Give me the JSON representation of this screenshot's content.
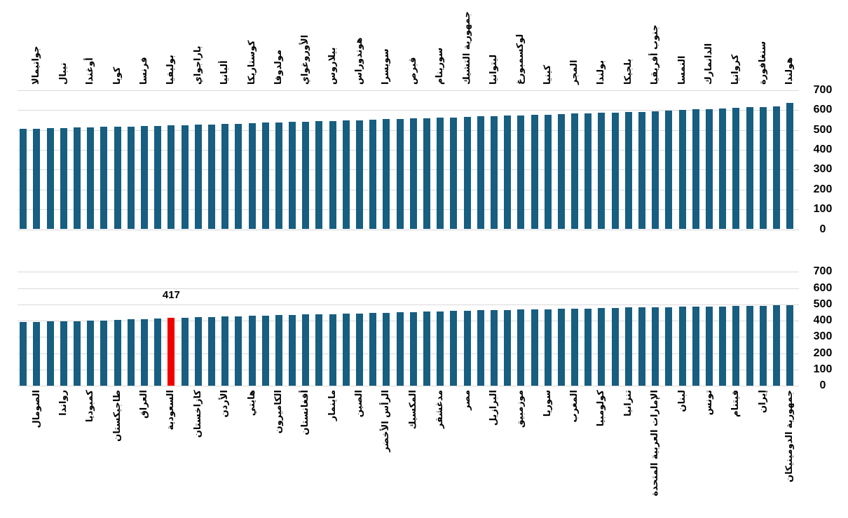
{
  "colors": {
    "bar": "#175E80",
    "highlight_bar": "#F20000",
    "gridline": "#D9D9D9",
    "text": "#000000"
  },
  "chart_data": [
    {
      "type": "bar",
      "panel": "top",
      "title": "",
      "xlabel": "",
      "ylabel": "",
      "ylim": [
        0,
        700
      ],
      "y_ticks": [
        0,
        100,
        200,
        300,
        400,
        500,
        600,
        700
      ],
      "y_axis_side": "right",
      "grid": true,
      "label_position": "above-bars-rotated-90",
      "label_placement": "every-second-bar-starting-at-2",
      "labels": [
        "جواتيمالا",
        "نيبال",
        "أوغندا",
        "كوبا",
        "فرنسا",
        "بوليفيا",
        "باراجواي",
        "ألبانيا",
        "كوستاريكا",
        "مولدوفا",
        "الأوروغواي",
        "بيلاروس",
        "هوندوراس",
        "سويسرا",
        "قبرص",
        "سورينام",
        "جمهورية التشيك",
        "ليتوانيا",
        "لوكسمبورغ",
        "كينيا",
        "المجر",
        "بولندا",
        "بلجيكا",
        "جنوب أفريقيا",
        "النمسا",
        "الدانمارك",
        "كرواتيا",
        "سنغافورة",
        "هولندا"
      ],
      "values": [
        505,
        507,
        509,
        510,
        512,
        513,
        515,
        516,
        518,
        519,
        521,
        522,
        524,
        526,
        528,
        530,
        532,
        534,
        536,
        538,
        540,
        542,
        544,
        546,
        548,
        550,
        552,
        554,
        556,
        558,
        560,
        562,
        564,
        566,
        568,
        570,
        572,
        574,
        576,
        578,
        580,
        582,
        584,
        586,
        588,
        590,
        592,
        594,
        597,
        600,
        603,
        606,
        609,
        612,
        614,
        616,
        618,
        636
      ]
    },
    {
      "type": "bar",
      "panel": "bottom",
      "title": "",
      "xlabel": "",
      "ylabel": "",
      "ylim": [
        0,
        700
      ],
      "y_ticks": [
        0,
        100,
        200,
        300,
        400,
        500,
        600,
        700
      ],
      "y_axis_side": "right",
      "grid": true,
      "label_position": "below-bars-rotated-90",
      "label_placement": "every-second-bar-starting-at-2",
      "labels": [
        "الصومال",
        "رواندا",
        "كمبوديا",
        "طاجيكستان",
        "العراق",
        "السعودية",
        "كازاخستان",
        "الأردن",
        "هايتي",
        "الكاميرون",
        "أفغانستان",
        "ماينمار",
        "الصين",
        "الرأس الأخضر",
        "المكسيك",
        "مدغشقر",
        "مصر",
        "البرازيل",
        "موزمبيق",
        "سوريا",
        "المغرب",
        "كولومبيا",
        "تنزانيا",
        "الإمارات العربية المتحدة",
        "لبنان",
        "تونس",
        "فيتنام",
        "إيران",
        "جمهورية الدومينيكان"
      ],
      "values": [
        390,
        392,
        394,
        396,
        398,
        400,
        402,
        404,
        407,
        410,
        413,
        417,
        419,
        421,
        423,
        425,
        427,
        429,
        431,
        433,
        435,
        437,
        439,
        441,
        443,
        445,
        447,
        449,
        451,
        453,
        455,
        457,
        459,
        461,
        463,
        464,
        466,
        468,
        469,
        471,
        472,
        474,
        475,
        477,
        478,
        480,
        481,
        482,
        483,
        485,
        486,
        487,
        488,
        489,
        490,
        492,
        493,
        495
      ],
      "highlight": {
        "bar_index": 12,
        "country": "السعودية",
        "value": 417,
        "annotation": "417"
      }
    }
  ]
}
